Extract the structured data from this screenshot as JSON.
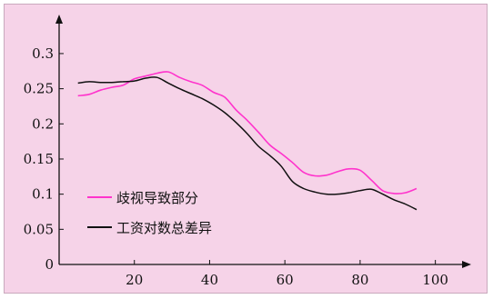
{
  "chart_data": {
    "type": "line",
    "xlim": [
      0,
      110
    ],
    "ylim": [
      0,
      0.34
    ],
    "x_ticks": [
      20,
      40,
      60,
      80,
      100
    ],
    "x_tick_labels": [
      "20",
      "40",
      "60",
      "80",
      "100"
    ],
    "y_ticks": [
      0,
      0.05,
      0.1,
      0.15,
      0.2,
      0.25,
      0.3
    ],
    "y_tick_labels": [
      "0",
      "0.05",
      "0.1",
      "0.15",
      "0.2",
      "0.25",
      "0.3"
    ],
    "legend_position": "bottom-left",
    "grid": false,
    "series": [
      {
        "name": "歧视导致部分",
        "color": "#ff33cc",
        "x": [
          5,
          8,
          11,
          14,
          17,
          20,
          23,
          26,
          29,
          32,
          35,
          38,
          41,
          44,
          47,
          50,
          53,
          56,
          59,
          62,
          65,
          68,
          71,
          74,
          77,
          80,
          83,
          86,
          89,
          92,
          95
        ],
        "y": [
          0.24,
          0.242,
          0.248,
          0.252,
          0.255,
          0.264,
          0.268,
          0.272,
          0.274,
          0.266,
          0.26,
          0.255,
          0.245,
          0.238,
          0.22,
          0.205,
          0.188,
          0.17,
          0.158,
          0.145,
          0.131,
          0.126,
          0.127,
          0.132,
          0.136,
          0.134,
          0.12,
          0.105,
          0.101,
          0.102,
          0.108
        ]
      },
      {
        "name": "工资对数总差异",
        "color": "#111111",
        "x": [
          5,
          8,
          11,
          14,
          17,
          20,
          23,
          26,
          29,
          32,
          35,
          38,
          41,
          44,
          47,
          50,
          53,
          56,
          59,
          62,
          65,
          68,
          71,
          74,
          77,
          80,
          83,
          86,
          89,
          92,
          95
        ],
        "y": [
          0.258,
          0.26,
          0.259,
          0.259,
          0.26,
          0.261,
          0.265,
          0.266,
          0.258,
          0.25,
          0.243,
          0.236,
          0.227,
          0.216,
          0.202,
          0.186,
          0.168,
          0.155,
          0.14,
          0.118,
          0.108,
          0.103,
          0.1,
          0.1,
          0.102,
          0.105,
          0.107,
          0.1,
          0.092,
          0.086,
          0.078
        ]
      }
    ]
  }
}
